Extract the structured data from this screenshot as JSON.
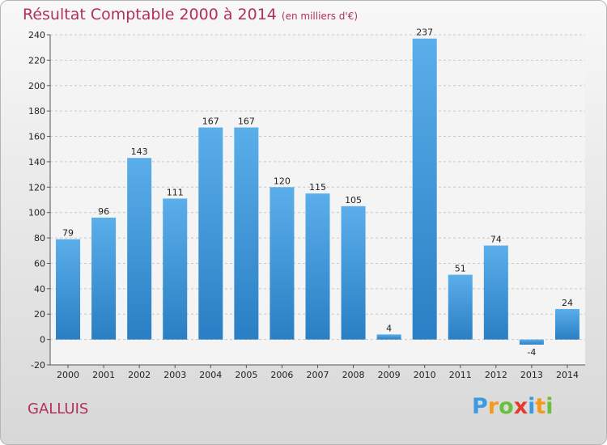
{
  "chart_data": {
    "type": "bar",
    "title": "Résultat Comptable 2000 à 2014",
    "subtitle": "(en milliers d'€)",
    "categories": [
      "2000",
      "2001",
      "2002",
      "2003",
      "2004",
      "2005",
      "2006",
      "2007",
      "2008",
      "2009",
      "2010",
      "2011",
      "2012",
      "2013",
      "2014"
    ],
    "values": [
      79,
      96,
      143,
      111,
      167,
      167,
      120,
      115,
      105,
      4,
      237,
      51,
      74,
      -4,
      24
    ],
    "ylim": [
      -20,
      240
    ],
    "yticks": [
      -20,
      0,
      20,
      40,
      60,
      80,
      100,
      120,
      140,
      160,
      180,
      200,
      220,
      240
    ],
    "grid": true,
    "bar_color": "#3d96dc"
  },
  "commune": "GALLUIS",
  "brand": {
    "letters": [
      "P",
      "r",
      "o",
      "x",
      "i",
      "t",
      "i"
    ],
    "colors": [
      "#3a9be0",
      "#f39a1e",
      "#6cbf3a",
      "#e23b2e",
      "#3a9be0",
      "#f39a1e",
      "#6cbf3a"
    ]
  }
}
